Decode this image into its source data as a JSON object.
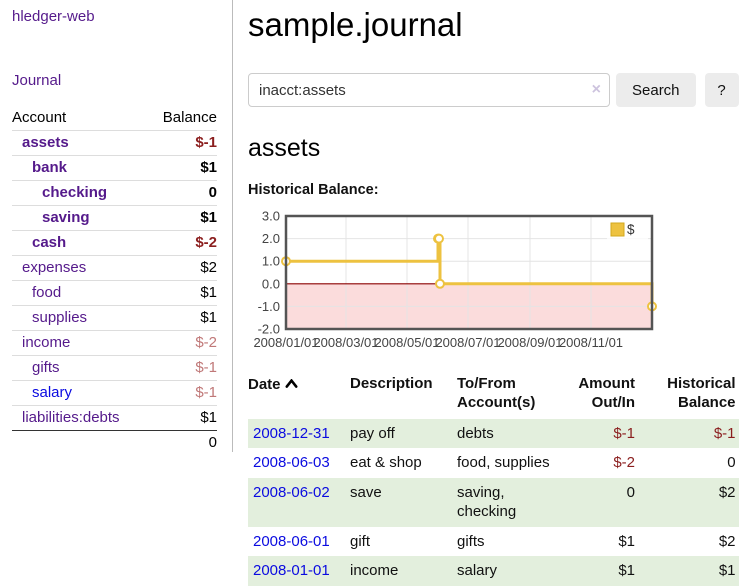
{
  "app": {
    "brand": "hledger-web"
  },
  "sidebar": {
    "nav": {
      "journal": "Journal"
    },
    "accounts_table": {
      "headers": {
        "account": "Account",
        "balance": "Balance"
      },
      "rows": [
        {
          "name": "assets",
          "indent": 1,
          "bold": true,
          "balance": "$-1",
          "link_style": "visited"
        },
        {
          "name": "bank",
          "indent": 2,
          "bold": true,
          "balance": "$1",
          "link_style": "visited"
        },
        {
          "name": "checking",
          "indent": 3,
          "bold": true,
          "balance": "0",
          "link_style": "visited"
        },
        {
          "name": "saving",
          "indent": 3,
          "bold": true,
          "balance": "$1",
          "link_style": "visited"
        },
        {
          "name": "cash",
          "indent": 2,
          "bold": true,
          "balance": "$-2",
          "link_style": "visited"
        },
        {
          "name": "expenses",
          "indent": 1,
          "bold": false,
          "balance": "$2",
          "link_style": "visited"
        },
        {
          "name": "food",
          "indent": 2,
          "bold": false,
          "balance": "$1",
          "link_style": "visited"
        },
        {
          "name": "supplies",
          "indent": 2,
          "bold": false,
          "balance": "$1",
          "link_style": "visited"
        },
        {
          "name": "income",
          "indent": 1,
          "bold": false,
          "balance": "$-2",
          "link_style": "visited"
        },
        {
          "name": "gifts",
          "indent": 2,
          "bold": false,
          "balance": "$-1",
          "link_style": "visited"
        },
        {
          "name": "salary",
          "indent": 2,
          "bold": false,
          "balance": "$-1",
          "link_style": "unvisited"
        },
        {
          "name": "liabilities:debts",
          "indent": 1,
          "bold": false,
          "balance": "$1",
          "link_style": "visited"
        }
      ],
      "total": "0"
    }
  },
  "main": {
    "title": "sample.journal",
    "search": {
      "value": "inacct:assets",
      "clear_icon": "×",
      "search_button": "Search",
      "help_button": "?"
    },
    "account_heading": "assets",
    "chart_title": "Historical Balance:"
  },
  "chart_data": {
    "type": "line",
    "title": "Historical Balance",
    "legend": {
      "position": "top-right",
      "entries": [
        {
          "label": "$",
          "color": "#edc240"
        }
      ]
    },
    "grid": true,
    "ylim": [
      -2,
      3
    ],
    "y_ticks": [
      {
        "value": 3,
        "label": "3.0"
      },
      {
        "value": 2,
        "label": "2.0"
      },
      {
        "value": 1,
        "label": "1.0"
      },
      {
        "value": 0,
        "label": "0.0"
      },
      {
        "value": -1,
        "label": "-1.0"
      },
      {
        "value": -2,
        "label": "-2.0"
      }
    ],
    "x_domain_days": [
      0,
      366
    ],
    "x_ticks": [
      {
        "day": 0,
        "label": "2008/01/01"
      },
      {
        "day": 60,
        "label": "2008/03/01"
      },
      {
        "day": 121,
        "label": "2008/05/01"
      },
      {
        "day": 182,
        "label": "2008/07/01"
      },
      {
        "day": 244,
        "label": "2008/09/01"
      },
      {
        "day": 305,
        "label": "2008/11/01"
      }
    ],
    "series": [
      {
        "name": "$",
        "color": "#edc240",
        "style": "steps",
        "points": [
          {
            "date": "2008-01-01",
            "day": 0,
            "value": 1
          },
          {
            "date": "2008-06-01",
            "day": 152,
            "value": 2
          },
          {
            "date": "2008-06-02",
            "day": 153,
            "value": 2
          },
          {
            "date": "2008-06-03",
            "day": 154,
            "value": 0
          },
          {
            "date": "2008-12-31",
            "day": 365,
            "value": -1
          }
        ]
      }
    ],
    "negative_region_fill": "#fbdcdc",
    "zero_line_color": "#8b0000",
    "border_color": "#545454",
    "gridline_color": "#e4e4e4"
  },
  "register": {
    "headers": {
      "date": "Date",
      "description": "Description",
      "accounts": "To/From Account(s)",
      "amount": "Amount Out/In",
      "balance": "Historical Balance"
    },
    "rows": [
      {
        "date": "2008-12-31",
        "description": "pay off",
        "accounts": "debts",
        "amount": "$-1",
        "balance": "$-1"
      },
      {
        "date": "2008-06-03",
        "description": "eat & shop",
        "accounts": "food, supplies",
        "amount": "$-2",
        "balance": "0"
      },
      {
        "date": "2008-06-02",
        "description": "save",
        "accounts": "saving, checking",
        "amount": "0",
        "balance": "$2"
      },
      {
        "date": "2008-06-01",
        "description": "gift",
        "accounts": "gifts",
        "amount": "$1",
        "balance": "$2"
      },
      {
        "date": "2008-01-01",
        "description": "income",
        "accounts": "salary",
        "amount": "$1",
        "balance": "$1"
      }
    ]
  },
  "colors": {
    "link_visited_purple": "#551a8b",
    "link_unvisited_blue": "#0b0be0",
    "negative_strong": "#8b1e1e",
    "negative_soft": "#c07878",
    "row_stripe_green": "#e3efdd",
    "series_gold": "#edc240"
  }
}
